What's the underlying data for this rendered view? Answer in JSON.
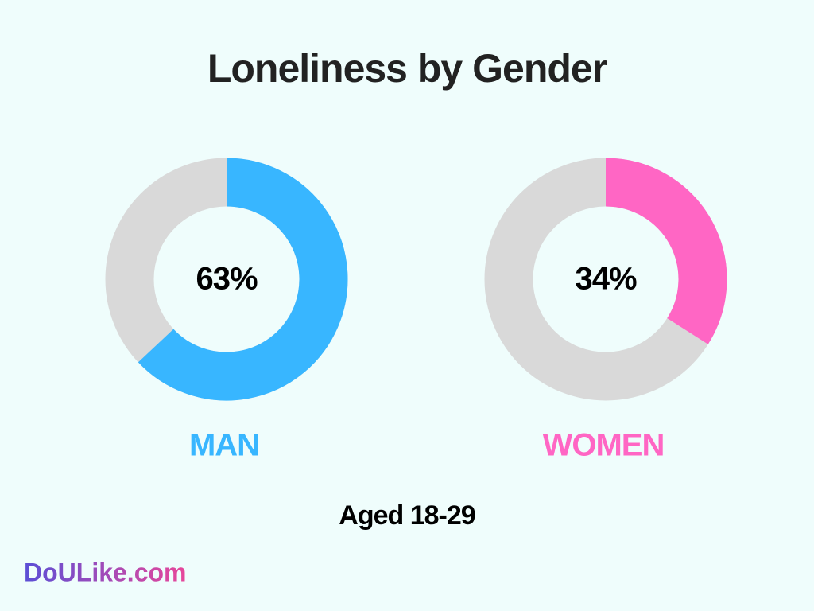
{
  "title": "Loneliness by Gender",
  "subtitle": "Aged 18-29",
  "brand": "DoULike.com",
  "chart_data": [
    {
      "type": "donut",
      "categories": [
        "MAN"
      ],
      "values": [
        63
      ],
      "value_labels": [
        "63%"
      ],
      "color": "#38b6ff"
    },
    {
      "type": "donut",
      "categories": [
        "WOMEN"
      ],
      "values": [
        34
      ],
      "value_labels": [
        "34%"
      ],
      "color": "#ff66c4"
    }
  ]
}
